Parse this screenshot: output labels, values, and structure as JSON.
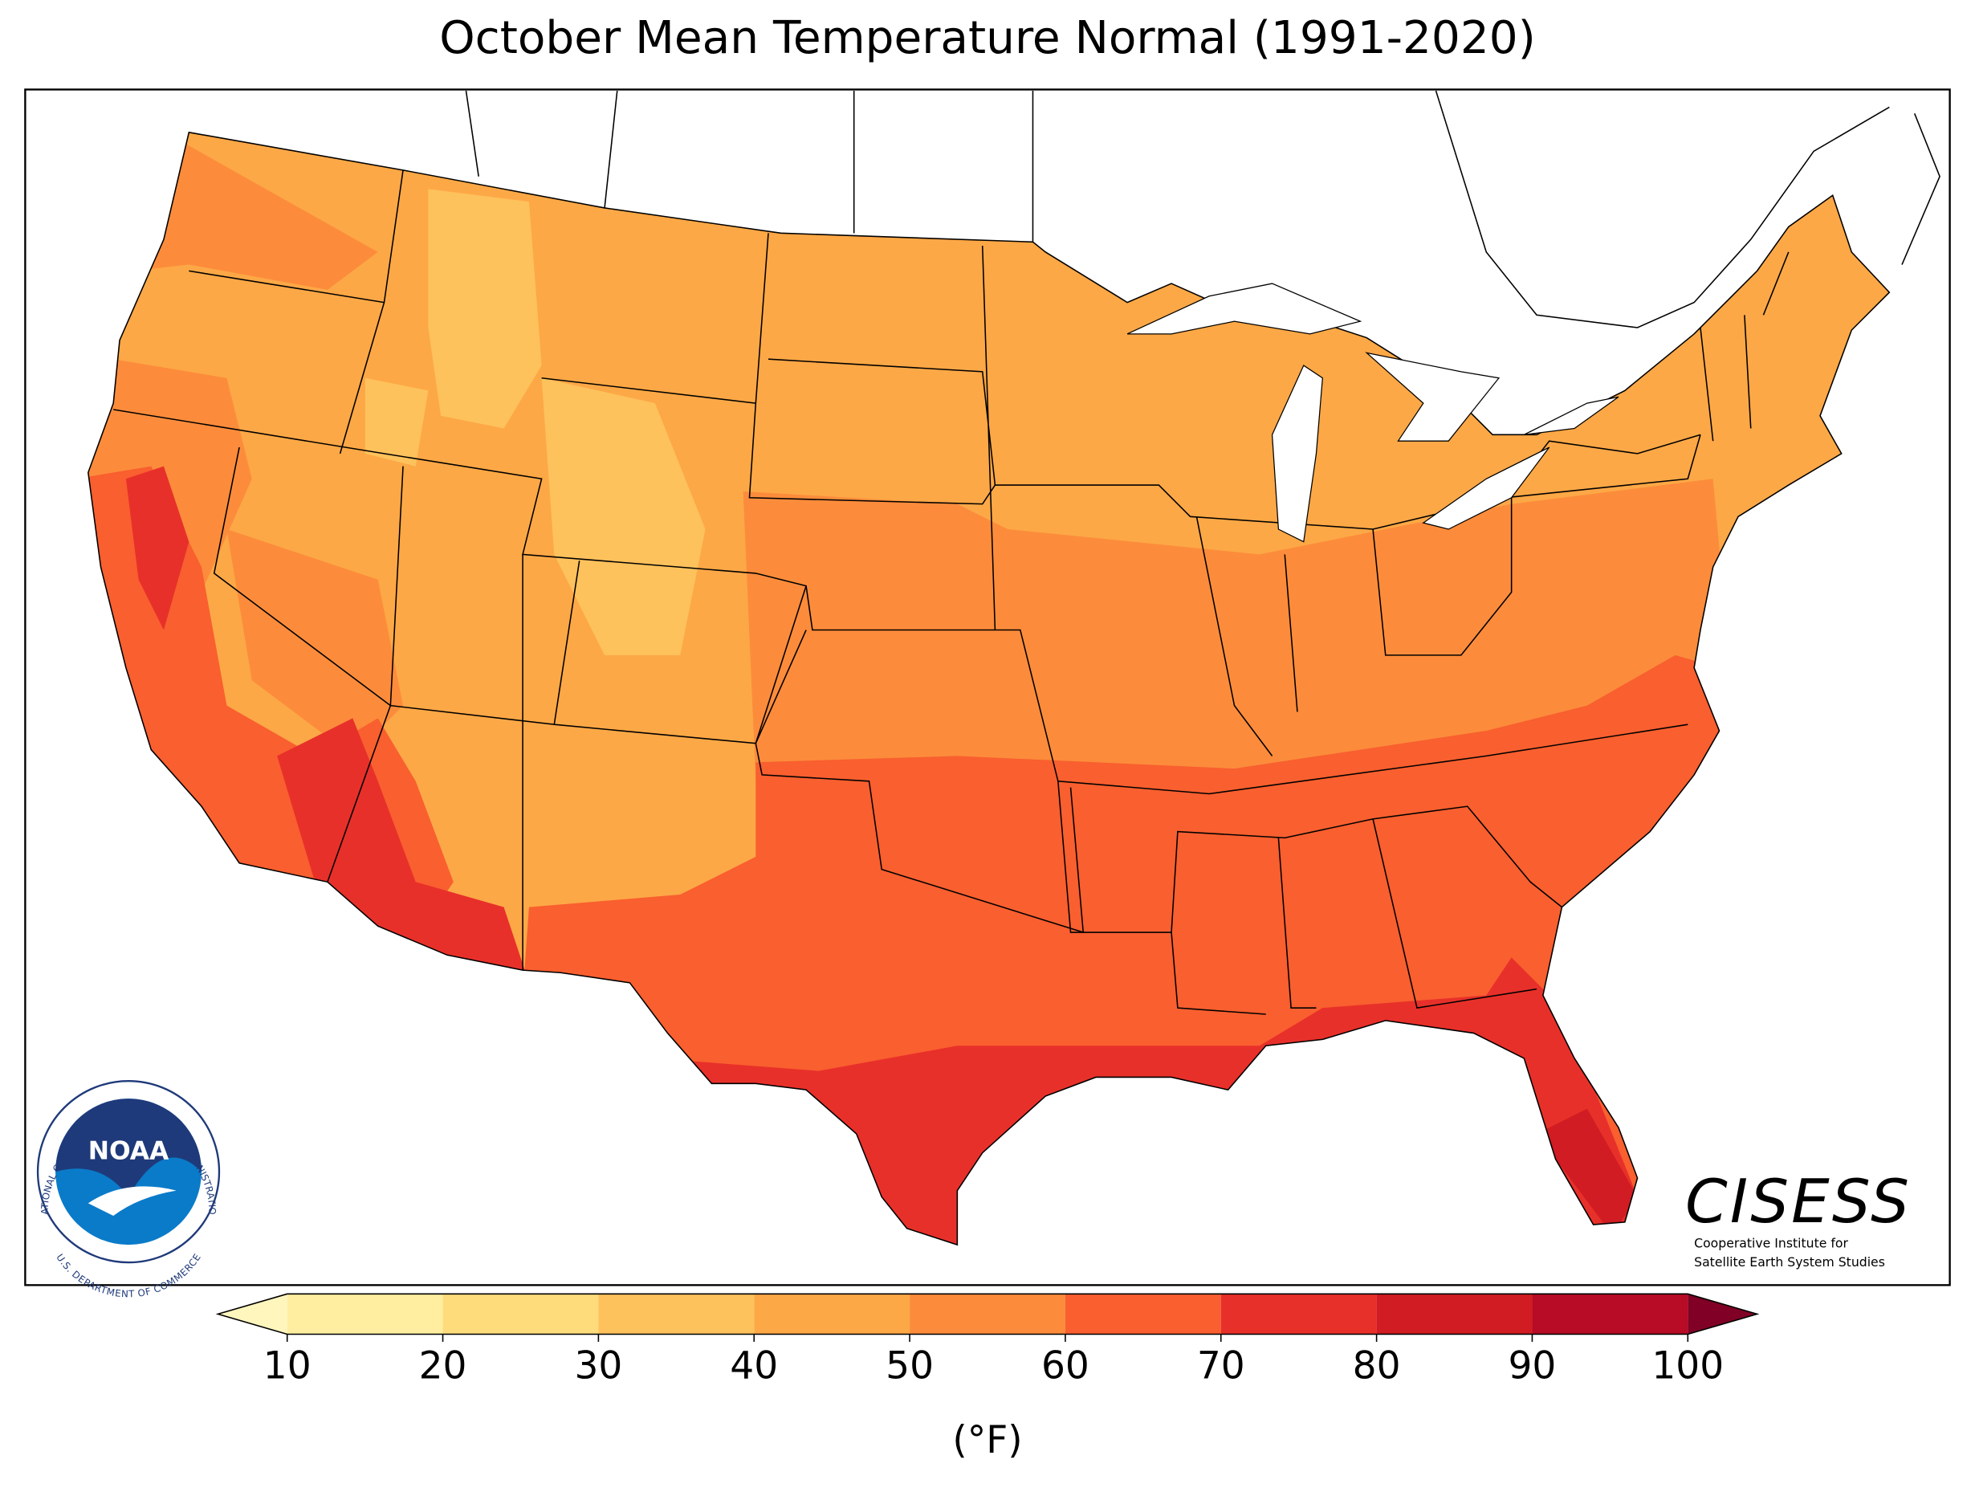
{
  "title": "October Mean Temperature Normal (1991-2020)",
  "colorbar": {
    "ticks": [
      10,
      20,
      30,
      40,
      50,
      60,
      70,
      80,
      90,
      100
    ],
    "colors": [
      "#ffeea0",
      "#fedc7c",
      "#fec25c",
      "#fda846",
      "#fc8c3b",
      "#f95f2f",
      "#e8302a",
      "#d01c22",
      "#b80b26"
    ],
    "under_color": "#fff6be",
    "over_color": "#800026",
    "label": "(°F)"
  },
  "logos": {
    "noaa": {
      "name": "NOAA",
      "ring_top": "NATIONAL OCEANIC AND ATMOSPHERIC ADMINISTRATION",
      "ring_bottom": "U.S. DEPARTMENT OF COMMERCE"
    },
    "cisess": {
      "name": "CISESS",
      "line1": "Cooperative Institute for",
      "line2": "Satellite Earth System Studies"
    }
  }
}
